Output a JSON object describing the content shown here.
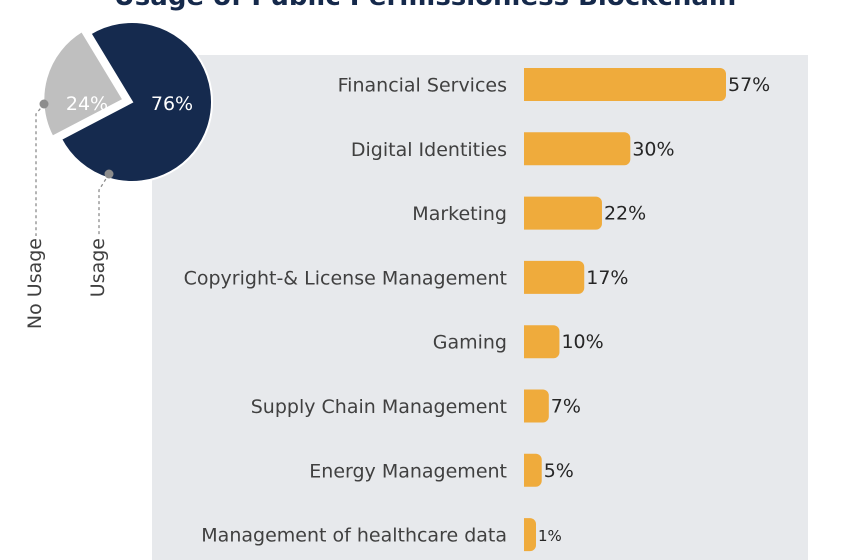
{
  "title": "Usage of Public Permissionless Blockchain",
  "chart_data": [
    {
      "type": "pie",
      "title": "",
      "slices": [
        {
          "label": "Usage",
          "value": 76,
          "display": "76%",
          "color": "#152a4e"
        },
        {
          "label": "No Usage",
          "value": 24,
          "display": "24%",
          "color": "#bfbfbf"
        }
      ]
    },
    {
      "type": "bar",
      "orientation": "horizontal",
      "title": "",
      "xlabel": "",
      "ylabel": "",
      "bar_color": "#efab3c",
      "panel_color": "#e7e9ec",
      "xlim": [
        0,
        57
      ],
      "categories": [
        "Financial Services",
        "Digital Identities",
        "Marketing",
        "Copyright-& License Management",
        "Gaming",
        "Supply Chain Management",
        "Energy Management",
        "Management of healthcare data"
      ],
      "values": [
        57,
        30,
        22,
        17,
        10,
        7,
        5,
        1
      ],
      "value_labels": [
        "57%",
        "30%",
        "22%",
        "17%",
        "10%",
        "7%",
        "5%",
        "1%"
      ]
    }
  ]
}
